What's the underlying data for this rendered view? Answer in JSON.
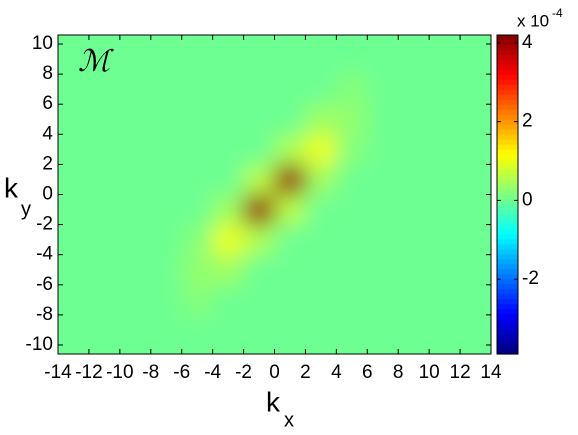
{
  "chart_data": {
    "type": "heatmap",
    "annotation": "ℳ",
    "xlabel": "k",
    "xlabel_sub": "x",
    "ylabel": "k",
    "ylabel_sub": "y",
    "x": [
      -13,
      -11,
      -9,
      -7,
      -5,
      -3,
      -1,
      1,
      3,
      5,
      7,
      9,
      11,
      13
    ],
    "y": [
      -9,
      -7,
      -5,
      -3,
      -1,
      1,
      3,
      5,
      7,
      9
    ],
    "z": [
      [
        0,
        0,
        0,
        0,
        0,
        0,
        0,
        0,
        0,
        0,
        0,
        0,
        0,
        0
      ],
      [
        0,
        0,
        0,
        0,
        0.2,
        0,
        0,
        0,
        0,
        0,
        0,
        0,
        0,
        0
      ],
      [
        0,
        0,
        0,
        0,
        0.3,
        0.4,
        0,
        0,
        0,
        0,
        0,
        0,
        0,
        0
      ],
      [
        0,
        0,
        0,
        0,
        0.2,
        1.0,
        0.5,
        0,
        0,
        0,
        0,
        0,
        0,
        0
      ],
      [
        0,
        0,
        0,
        0,
        0,
        0.4,
        4,
        0.6,
        0,
        0,
        0,
        0,
        0,
        0
      ],
      [
        0,
        0,
        0,
        0,
        0,
        0,
        0.6,
        4,
        0.4,
        0,
        0,
        0,
        0,
        0
      ],
      [
        0,
        0,
        0,
        0,
        0,
        0,
        0,
        0.5,
        1.0,
        0.2,
        0,
        0,
        0,
        0
      ],
      [
        0,
        0,
        0,
        0,
        0,
        0,
        0,
        0,
        0.4,
        0.3,
        0,
        0,
        0,
        0
      ],
      [
        0,
        0,
        0,
        0,
        0,
        0,
        0,
        0,
        0,
        0.2,
        0,
        0,
        0,
        0
      ],
      [
        0,
        0,
        0,
        0,
        0,
        0,
        0,
        0,
        0,
        0,
        0,
        0,
        0,
        0
      ]
    ],
    "xlim": [
      -14,
      14
    ],
    "xticks": [
      -14,
      -12,
      -10,
      -8,
      -6,
      -4,
      -2,
      0,
      2,
      4,
      6,
      8,
      10,
      12,
      14
    ],
    "ylim": [
      -10.6,
      10.6
    ],
    "yticks": [
      -10,
      -8,
      -6,
      -4,
      -2,
      0,
      2,
      4,
      6,
      8,
      10
    ],
    "colormap": "jet",
    "clim": [
      -3.9,
      4.2
    ],
    "cticks": [
      -2,
      0,
      2,
      4
    ],
    "cscale_label": "x 10",
    "cscale_exp": "-4"
  }
}
